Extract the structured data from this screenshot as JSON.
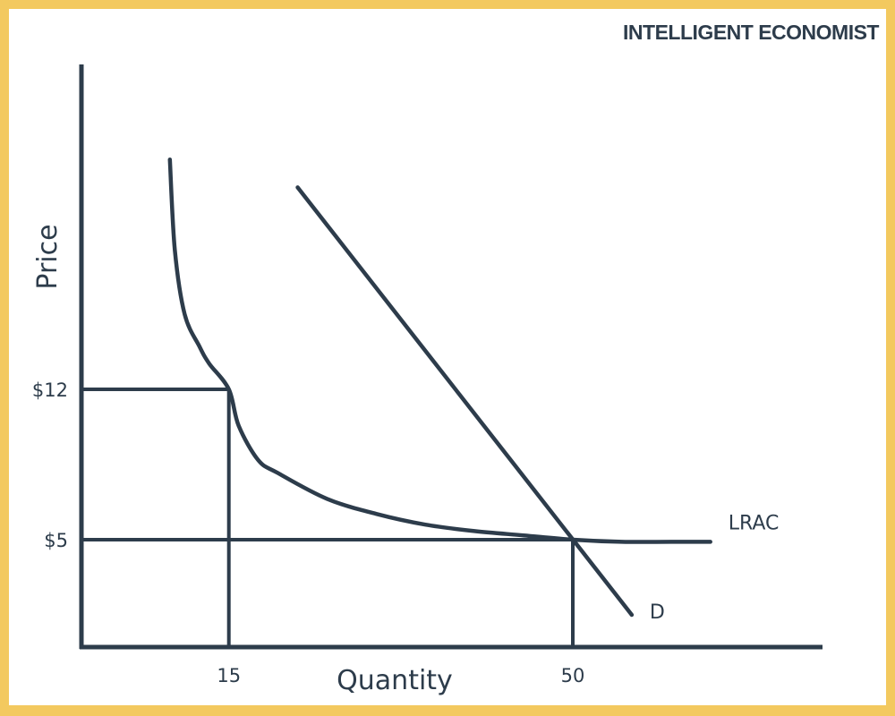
{
  "brand": "INTELLIGENT ECONOMIST",
  "colors": {
    "border": "#f3c95f",
    "ink": "#2d3c4b",
    "background": "#ffffff"
  },
  "chart_data": {
    "type": "line",
    "title": "",
    "xlabel": "Quantity",
    "ylabel": "Price",
    "x_ticks": [
      {
        "value": 15,
        "label": "15"
      },
      {
        "value": 50,
        "label": "50"
      }
    ],
    "y_ticks": [
      {
        "value": 12,
        "label": "$12"
      },
      {
        "value": 5,
        "label": "$5"
      }
    ],
    "xlim": [
      0,
      60
    ],
    "ylim": [
      0,
      28
    ],
    "grid": false,
    "series": [
      {
        "name": "LRAC",
        "points": [
          [
            9,
            22.7
          ],
          [
            9.5,
            18.5
          ],
          [
            10.5,
            15.5
          ],
          [
            12,
            14
          ],
          [
            13,
            13.2
          ],
          [
            15,
            12
          ],
          [
            16,
            10.3
          ],
          [
            18,
            8.7
          ],
          [
            20,
            8.1
          ],
          [
            25,
            6.9
          ],
          [
            30,
            6.2
          ],
          [
            35,
            5.7
          ],
          [
            40,
            5.4
          ],
          [
            45,
            5.2
          ],
          [
            50,
            5
          ],
          [
            55,
            4.9
          ],
          [
            60,
            4.9
          ],
          [
            64,
            4.9
          ]
        ]
      },
      {
        "name": "D",
        "points": [
          [
            22,
            21.4
          ],
          [
            56,
            1.5
          ]
        ]
      }
    ],
    "reference_lines": [
      {
        "x": 15,
        "y": 12
      },
      {
        "x": 50,
        "y": 5
      }
    ]
  }
}
